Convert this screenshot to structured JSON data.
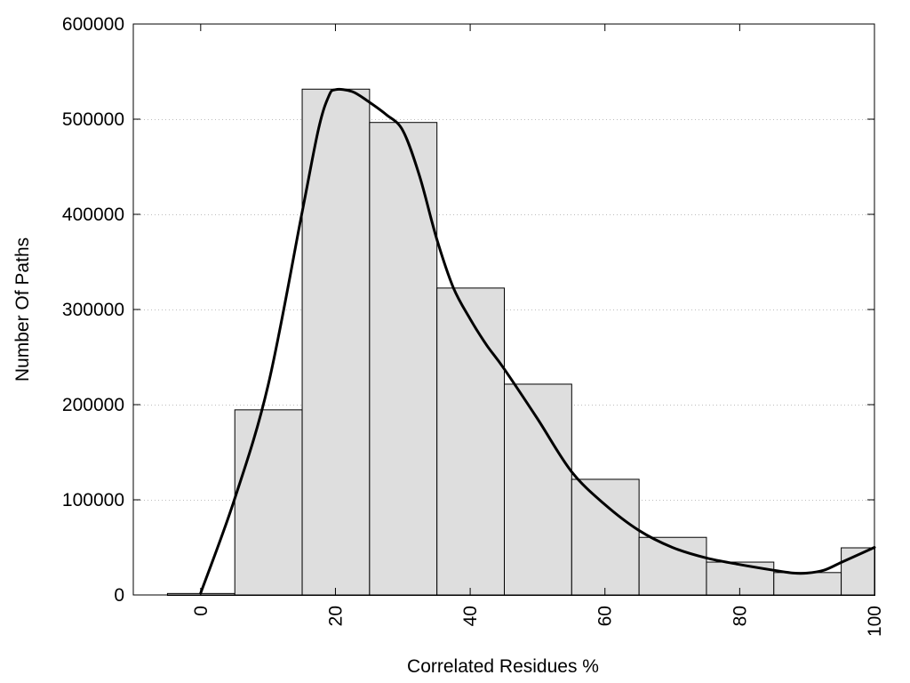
{
  "chart_data": {
    "type": "bar",
    "title": "",
    "xlabel": "Correlated Residues %",
    "ylabel": "Number Of Paths",
    "xlim": [
      -10,
      100
    ],
    "ylim": [
      0,
      600000
    ],
    "grid": true,
    "legend": "none",
    "bar_width": 10,
    "x_ticks": [
      0,
      20,
      40,
      60,
      80,
      100
    ],
    "y_ticks": [
      0,
      100000,
      200000,
      300000,
      400000,
      500000,
      600000
    ],
    "x_tick_labels": [
      "0",
      "20",
      "40",
      "60",
      "80",
      "100"
    ],
    "y_tick_labels": [
      "0",
      "100000",
      "200000",
      "300000",
      "400000",
      "500000",
      "600000"
    ],
    "bars": [
      {
        "x": 0,
        "value": 2000
      },
      {
        "x": 10,
        "value": 195000
      },
      {
        "x": 20,
        "value": 532000
      },
      {
        "x": 30,
        "value": 497000
      },
      {
        "x": 40,
        "value": 323000
      },
      {
        "x": 50,
        "value": 222000
      },
      {
        "x": 60,
        "value": 122000
      },
      {
        "x": 70,
        "value": 61000
      },
      {
        "x": 80,
        "value": 35000
      },
      {
        "x": 90,
        "value": 24000
      },
      {
        "x": 100,
        "value": 50000
      }
    ],
    "curve": {
      "x": [
        0,
        5,
        10,
        15,
        17.5,
        19,
        20,
        22.5,
        25,
        27.5,
        30,
        32.5,
        35,
        37.5,
        40,
        42.5,
        45,
        50,
        55,
        60,
        65,
        70,
        75,
        80,
        85,
        88,
        90,
        92.5,
        95,
        97.5,
        100
      ],
      "y": [
        2000,
        100000,
        220000,
        400000,
        490000,
        524000,
        531000,
        529000,
        518000,
        505000,
        488000,
        440000,
        375000,
        323000,
        290000,
        262000,
        238000,
        185000,
        130000,
        95000,
        68000,
        50000,
        39000,
        32000,
        26000,
        23000,
        23000,
        26000,
        34000,
        42000,
        50000
      ]
    },
    "colors": {
      "bar_fill": "#dedede",
      "bar_stroke": "#000000",
      "curve": "#000000",
      "grid": "#bdbdbd"
    }
  }
}
